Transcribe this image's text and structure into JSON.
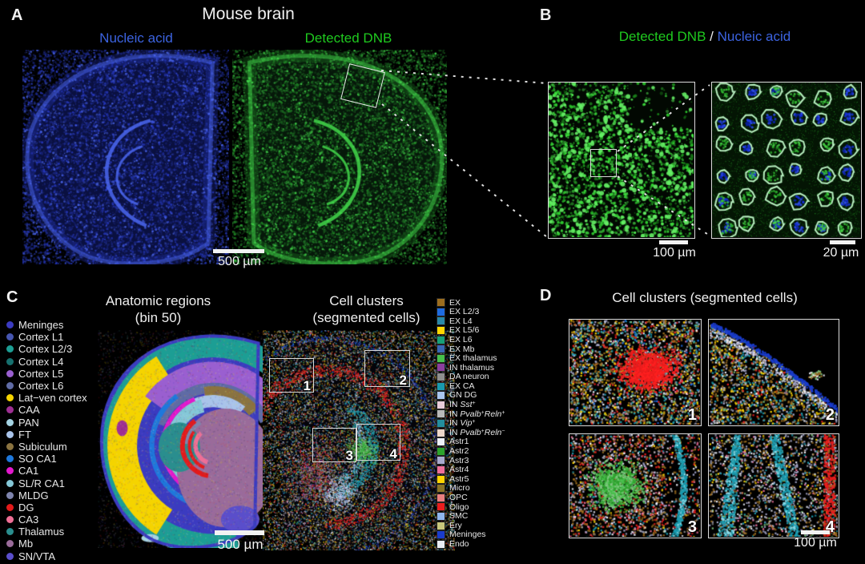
{
  "panels": {
    "A": {
      "letter": "A",
      "title": "Mouse brain",
      "label_left": "Nucleic acid",
      "label_right": "Detected DNB",
      "scalebar": "500 µm"
    },
    "B": {
      "letter": "B",
      "title_green": "Detected DNB",
      "title_sep": " / ",
      "title_blue": "Nucleic acid",
      "scalebar_left": "100 µm",
      "scalebar_right": "20 µm"
    },
    "C": {
      "letter": "C",
      "title_left1": "Anatomic regions",
      "title_left2": "(bin 50)",
      "title_right1": "Cell clusters",
      "title_right2": "(segmented cells)",
      "scalebar": "500 µm",
      "box_labels": [
        "1",
        "2",
        "3",
        "4"
      ]
    },
    "D": {
      "letter": "D",
      "title": "Cell clusters (segmented cells)",
      "scalebar": "100 µm",
      "image_labels": [
        "1",
        "2",
        "3",
        "4"
      ]
    }
  },
  "colors": {
    "text_blue": "#3c63e0",
    "text_green": "#1fca1f",
    "text_white": "#efefef",
    "background": "#000000"
  },
  "anatomic_legend": [
    {
      "label": "Meninges",
      "color": "#3b3bc0"
    },
    {
      "label": "Cortex L1",
      "color": "#4656b0"
    },
    {
      "label": "Cortex L2/3",
      "color": "#1c9e94"
    },
    {
      "label": "Cortex L4",
      "color": "#16706e"
    },
    {
      "label": "Cortex L5",
      "color": "#9a5fd0"
    },
    {
      "label": "Cortex L6",
      "color": "#5f6ba5"
    },
    {
      "label": "Lat−ven cortex",
      "color": "#f5d400"
    },
    {
      "label": "CAA",
      "color": "#9e2f93"
    },
    {
      "label": "PAN",
      "color": "#a5d4e4"
    },
    {
      "label": "FT",
      "color": "#a9c4ea"
    },
    {
      "label": "Subiculum",
      "color": "#8a7340"
    },
    {
      "label": "SO CA1",
      "color": "#1e78dc"
    },
    {
      "label": "CA1",
      "color": "#e318cd"
    },
    {
      "label": "SL/R CA1",
      "color": "#85c8d8"
    },
    {
      "label": "MLDG",
      "color": "#7e84ad"
    },
    {
      "label": "DG",
      "color": "#e31a1a"
    },
    {
      "label": "CA3",
      "color": "#ef6f96"
    },
    {
      "label": "Thalamus",
      "color": "#2a8e8e"
    },
    {
      "label": "Mb",
      "color": "#9a6b9a"
    },
    {
      "label": "SN/VTA",
      "color": "#5a4ecb"
    }
  ],
  "cluster_legend": [
    {
      "label": "EX",
      "color": "#9c6d1e",
      "segments": [
        {
          "t": "EX"
        }
      ]
    },
    {
      "label": "EX L2/3",
      "color": "#1e6be0",
      "segments": [
        {
          "t": "EX L2/3"
        }
      ]
    },
    {
      "label": "EX L4",
      "color": "#2a87a8",
      "segments": [
        {
          "t": "EX L4"
        }
      ]
    },
    {
      "label": "EX L5/6",
      "color": "#ffd700",
      "segments": [
        {
          "t": "EX L5/6"
        }
      ]
    },
    {
      "label": "EX L6",
      "color": "#17a077",
      "segments": [
        {
          "t": "EX L6"
        }
      ]
    },
    {
      "label": "EX Mb",
      "color": "#3a67b5",
      "segments": [
        {
          "t": "EX Mb"
        }
      ]
    },
    {
      "label": "EX thalamus",
      "color": "#46c04a",
      "segments": [
        {
          "t": "EX thalamus"
        }
      ]
    },
    {
      "label": "IN thalamus",
      "color": "#8c3f9e",
      "segments": [
        {
          "t": "IN thalamus"
        }
      ]
    },
    {
      "label": "DA neuron",
      "color": "#8f8f8f",
      "segments": [
        {
          "t": "DA neuron"
        }
      ]
    },
    {
      "label": "EX CA",
      "color": "#199aae",
      "segments": [
        {
          "t": "EX CA"
        }
      ]
    },
    {
      "label": "GN DG",
      "color": "#a9c7ee",
      "segments": [
        {
          "t": "GN DG"
        }
      ]
    },
    {
      "label": "IN Sst+",
      "color": "#e7ccd9",
      "segments": [
        {
          "t": "IN "
        },
        {
          "t": "Sst",
          "i": 1
        },
        {
          "t": "+",
          "sup": 1
        }
      ]
    },
    {
      "label": "IN Pvalb+Reln+",
      "color": "#b9b9b9",
      "segments": [
        {
          "t": "IN "
        },
        {
          "t": "Pvalb",
          "i": 1
        },
        {
          "t": "+",
          "sup": 1
        },
        {
          "t": "Reln",
          "i": 1
        },
        {
          "t": "+",
          "sup": 1
        }
      ]
    },
    {
      "label": "IN Vip+",
      "color": "#238e9e",
      "segments": [
        {
          "t": "IN "
        },
        {
          "t": "Vip",
          "i": 1
        },
        {
          "t": "+",
          "sup": 1
        }
      ]
    },
    {
      "label": "IN Pvalb+Reln−",
      "color": "#ecd6c9",
      "segments": [
        {
          "t": "IN "
        },
        {
          "t": "Pvalb",
          "i": 1
        },
        {
          "t": "+",
          "sup": 1
        },
        {
          "t": "Reln",
          "i": 1
        },
        {
          "t": "−",
          "sup": 1
        }
      ]
    },
    {
      "label": "Astr1",
      "color": "#eef0f8",
      "segments": [
        {
          "t": "Astr1"
        }
      ]
    },
    {
      "label": "Astr2",
      "color": "#2ca32c",
      "segments": [
        {
          "t": "Astr2"
        }
      ]
    },
    {
      "label": "Astr3",
      "color": "#a9aace",
      "segments": [
        {
          "t": "Astr3"
        }
      ]
    },
    {
      "label": "Astr4",
      "color": "#ef6f9a",
      "segments": [
        {
          "t": "Astr4"
        }
      ]
    },
    {
      "label": "Astr5",
      "color": "#ffd400",
      "segments": [
        {
          "t": "Astr5"
        }
      ]
    },
    {
      "label": "Micro",
      "color": "#8a7426",
      "segments": [
        {
          "t": "Micro"
        }
      ]
    },
    {
      "label": "OPC",
      "color": "#e87f7f",
      "segments": [
        {
          "t": "OPC"
        }
      ]
    },
    {
      "label": "Oligo",
      "color": "#ea1d1d",
      "segments": [
        {
          "t": "Oligo"
        }
      ]
    },
    {
      "label": "SMC",
      "color": "#8fb6ee",
      "segments": [
        {
          "t": "SMC"
        }
      ]
    },
    {
      "label": "Ery",
      "color": "#c9c77c",
      "segments": [
        {
          "t": "Ery"
        }
      ]
    },
    {
      "label": "Meninges",
      "color": "#1a3ccc",
      "segments": [
        {
          "t": "Meninges"
        }
      ]
    },
    {
      "label": "Endo",
      "color": "#e9ecf4",
      "segments": [
        {
          "t": "Endo"
        }
      ]
    }
  ]
}
